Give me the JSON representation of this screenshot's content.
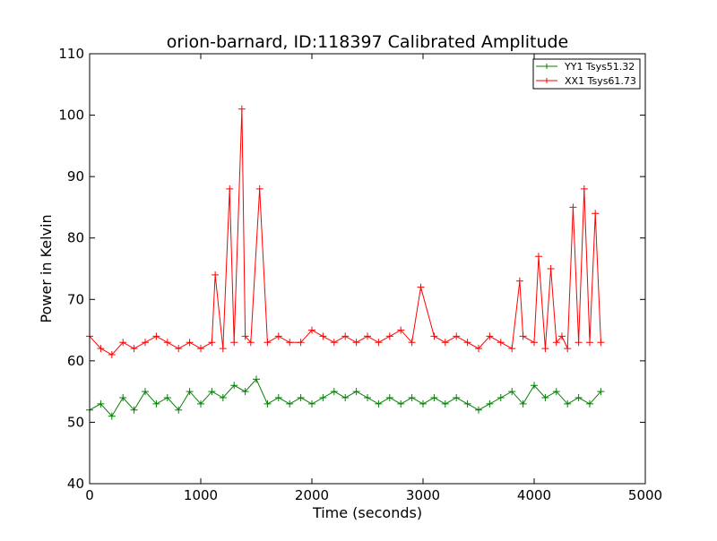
{
  "chart_data": {
    "type": "line",
    "title": "orion-barnard, ID:118397 Calibrated Amplitude",
    "xlabel": "Time (seconds)",
    "ylabel": "Power in Kelvin",
    "xlim": [
      0,
      5000
    ],
    "ylim": [
      40,
      110
    ],
    "xticks": [
      "0",
      "1000",
      "2000",
      "3000",
      "4000",
      "5000"
    ],
    "yticks": [
      "40",
      "50",
      "60",
      "70",
      "80",
      "90",
      "100",
      "110"
    ],
    "grid": false,
    "legend_position": "top-right",
    "series": [
      {
        "name": "YY1 Tsys51.32",
        "color": "#008000",
        "marker": "+",
        "x": [
          0,
          100,
          200,
          300,
          400,
          500,
          600,
          700,
          800,
          900,
          1000,
          1100,
          1200,
          1300,
          1400,
          1500,
          1600,
          1700,
          1800,
          1900,
          2000,
          2100,
          2200,
          2300,
          2400,
          2500,
          2600,
          2700,
          2800,
          2900,
          3000,
          3100,
          3200,
          3300,
          3400,
          3500,
          3600,
          3700,
          3800,
          3900,
          4000,
          4100,
          4200,
          4300,
          4400,
          4500,
          4600
        ],
        "y": [
          52,
          53,
          51,
          54,
          52,
          55,
          53,
          54,
          52,
          55,
          53,
          55,
          54,
          56,
          55,
          57,
          53,
          54,
          53,
          54,
          53,
          54,
          55,
          54,
          55,
          54,
          53,
          54,
          53,
          54,
          53,
          54,
          53,
          54,
          53,
          52,
          53,
          54,
          55,
          53,
          56,
          54,
          55,
          53,
          54,
          53,
          55
        ]
      },
      {
        "name": "XX1 Tsys61.73",
        "color": "#ff0000",
        "marker": "+",
        "x": [
          0,
          100,
          200,
          300,
          400,
          500,
          600,
          700,
          800,
          900,
          1000,
          1100,
          1130,
          1200,
          1260,
          1300,
          1370,
          1400,
          1450,
          1530,
          1600,
          1700,
          1800,
          1900,
          2000,
          2100,
          2200,
          2300,
          2400,
          2500,
          2600,
          2700,
          2800,
          2900,
          2980,
          3100,
          3200,
          3300,
          3400,
          3500,
          3600,
          3700,
          3800,
          3870,
          3900,
          4000,
          4040,
          4100,
          4150,
          4200,
          4250,
          4300,
          4350,
          4400,
          4450,
          4500,
          4550,
          4600
        ],
        "y": [
          64,
          62,
          61,
          63,
          62,
          63,
          64,
          63,
          62,
          63,
          62,
          63,
          74,
          62,
          88,
          63,
          101,
          64,
          63,
          88,
          63,
          64,
          63,
          63,
          65,
          64,
          63,
          64,
          63,
          64,
          63,
          64,
          65,
          63,
          72,
          64,
          63,
          64,
          63,
          62,
          64,
          63,
          62,
          73,
          64,
          63,
          77,
          62,
          75,
          63,
          64,
          62,
          85,
          63,
          88,
          63,
          84,
          63
        ]
      }
    ]
  }
}
